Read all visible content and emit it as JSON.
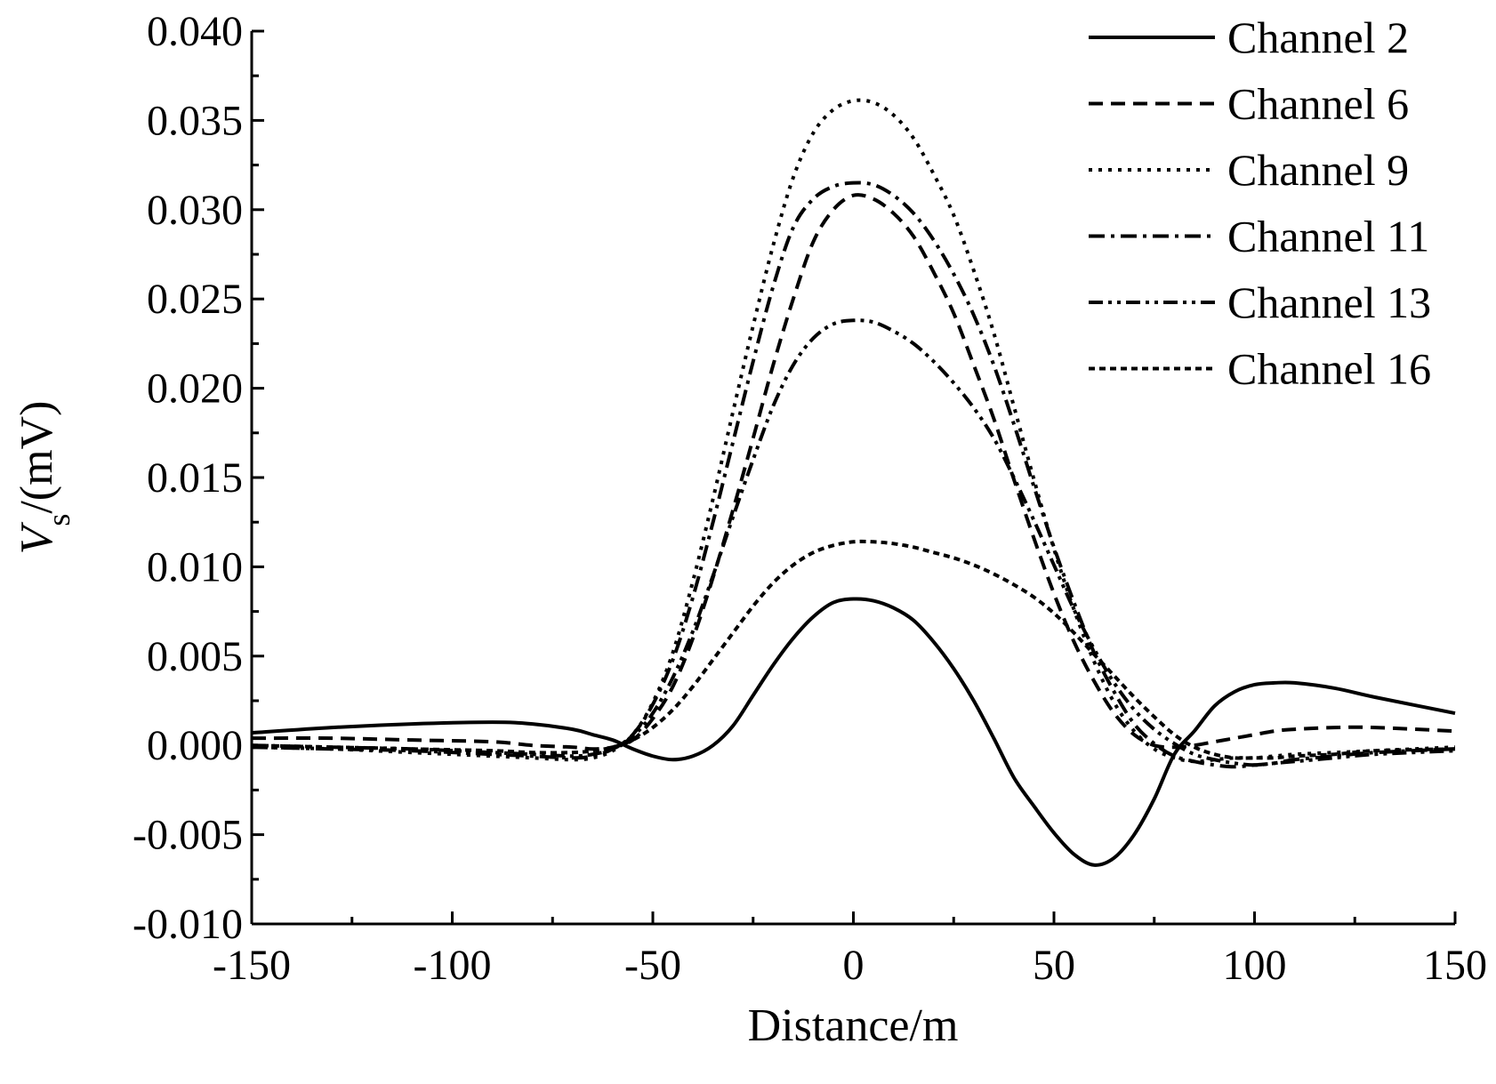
{
  "chart_data": {
    "type": "line",
    "title": "",
    "xlabel": "Distance/m",
    "ylabel_main": "V",
    "ylabel_sub": "s",
    "ylabel_unit": "/(mV)",
    "xlim": [
      -150,
      150
    ],
    "ylim": [
      -0.01,
      0.04
    ],
    "x_ticks": [
      -150,
      -100,
      -50,
      0,
      50,
      100,
      150
    ],
    "x_tick_labels": [
      "-150",
      "-100",
      "-50",
      "0",
      "50",
      "100",
      "150"
    ],
    "y_ticks": [
      -0.01,
      -0.005,
      0.0,
      0.005,
      0.01,
      0.015,
      0.02,
      0.025,
      0.03,
      0.035,
      0.04
    ],
    "y_tick_labels": [
      "-0.010",
      "-0.005",
      "0.000",
      "0.005",
      "0.010",
      "0.015",
      "0.020",
      "0.025",
      "0.030",
      "0.035",
      "0.040"
    ],
    "grid": false,
    "legend_position": "top-right",
    "x": [
      -150,
      -130,
      -110,
      -90,
      -80,
      -70,
      -65,
      -60,
      -55,
      -50,
      -45,
      -40,
      -35,
      -30,
      -25,
      -20,
      -15,
      -10,
      -5,
      0,
      5,
      10,
      15,
      20,
      25,
      30,
      35,
      40,
      45,
      50,
      55,
      60,
      65,
      70,
      75,
      80,
      85,
      90,
      95,
      100,
      105,
      110,
      120,
      130,
      150
    ],
    "series": [
      {
        "name": "Channel 2",
        "dash": "solid",
        "values": [
          0.0007,
          0.001,
          0.0012,
          0.0013,
          0.0012,
          0.0009,
          0.0006,
          0.0003,
          -0.0002,
          -0.0006,
          -0.0008,
          -0.0006,
          0.0,
          0.0011,
          0.0028,
          0.0045,
          0.006,
          0.0072,
          0.008,
          0.0082,
          0.0081,
          0.0077,
          0.007,
          0.0058,
          0.0043,
          0.0025,
          0.0004,
          -0.0018,
          -0.0034,
          -0.0049,
          -0.0061,
          -0.0067,
          -0.0063,
          -0.005,
          -0.003,
          -0.0005,
          0.0008,
          0.0022,
          0.003,
          0.0034,
          0.0035,
          0.0035,
          0.0032,
          0.0027,
          0.0018
        ]
      },
      {
        "name": "Channel 6",
        "dash": "dashed",
        "values": [
          0.0004,
          0.0004,
          0.0003,
          0.0002,
          0.0,
          -0.0001,
          -0.0002,
          -0.0001,
          0.0003,
          0.0015,
          0.0033,
          0.006,
          0.0094,
          0.0132,
          0.0172,
          0.0213,
          0.025,
          0.0282,
          0.03,
          0.0308,
          0.0306,
          0.0298,
          0.0285,
          0.0265,
          0.0242,
          0.0213,
          0.0183,
          0.0149,
          0.0116,
          0.0085,
          0.0058,
          0.0036,
          0.0018,
          0.0006,
          0.0,
          -0.0001,
          0.0,
          0.0002,
          0.0004,
          0.0006,
          0.0008,
          0.0009,
          0.001,
          0.001,
          0.0008
        ]
      },
      {
        "name": "Channel 9",
        "dash": "dotted",
        "values": [
          -0.0001,
          -0.0002,
          -0.0004,
          -0.0006,
          -0.0007,
          -0.0008,
          -0.0007,
          -0.0003,
          0.0006,
          0.0024,
          0.0052,
          0.0092,
          0.0138,
          0.0187,
          0.0235,
          0.028,
          0.0318,
          0.0343,
          0.0356,
          0.0361,
          0.036,
          0.0353,
          0.034,
          0.032,
          0.0297,
          0.0266,
          0.0231,
          0.019,
          0.0149,
          0.011,
          0.0076,
          0.0047,
          0.0024,
          0.0008,
          -0.0002,
          -0.0007,
          -0.0009,
          -0.0008,
          -0.0007,
          -0.0007,
          -0.0006,
          -0.0005,
          -0.0004,
          -0.0003,
          -0.0001
        ]
      },
      {
        "name": "Channel 11",
        "dash": "dashdot",
        "values": [
          -0.0001,
          -0.0002,
          -0.0003,
          -0.0005,
          -0.0006,
          -0.0007,
          -0.0006,
          -0.0002,
          0.0006,
          0.0023,
          0.0048,
          0.0083,
          0.0125,
          0.017,
          0.0215,
          0.0257,
          0.029,
          0.0306,
          0.0313,
          0.0315,
          0.0314,
          0.0308,
          0.0298,
          0.0283,
          0.0264,
          0.0241,
          0.0213,
          0.018,
          0.0145,
          0.0111,
          0.008,
          0.0052,
          0.003,
          0.0012,
          0.0001,
          -0.0006,
          -0.0009,
          -0.0011,
          -0.0012,
          -0.0011,
          -0.001,
          -0.0008,
          -0.0006,
          -0.0004,
          -0.0002
        ]
      },
      {
        "name": "Channel 13",
        "dash": "dashdotdot",
        "values": [
          0.0,
          -0.0001,
          -0.0002,
          -0.0004,
          -0.0005,
          -0.0006,
          -0.0005,
          -0.0002,
          0.0005,
          0.0018,
          0.0038,
          0.0064,
          0.0095,
          0.0128,
          0.016,
          0.019,
          0.0213,
          0.0228,
          0.0236,
          0.0238,
          0.0237,
          0.0232,
          0.0225,
          0.0215,
          0.0203,
          0.0189,
          0.0172,
          0.015,
          0.0126,
          0.0101,
          0.0076,
          0.0054,
          0.0035,
          0.002,
          0.0009,
          0.0001,
          -0.0005,
          -0.0008,
          -0.001,
          -0.0011,
          -0.001,
          -0.0009,
          -0.0007,
          -0.0005,
          -0.0003
        ]
      },
      {
        "name": "Channel 16",
        "dash": "shortdash",
        "values": [
          0.0,
          -0.0001,
          -0.0002,
          -0.0003,
          -0.0004,
          -0.0004,
          -0.0003,
          -0.0001,
          0.0003,
          0.001,
          0.002,
          0.0033,
          0.0048,
          0.0063,
          0.0078,
          0.0091,
          0.0101,
          0.0108,
          0.0112,
          0.0114,
          0.0114,
          0.0113,
          0.0111,
          0.0108,
          0.0105,
          0.0101,
          0.0096,
          0.009,
          0.0083,
          0.0074,
          0.0063,
          0.0051,
          0.0039,
          0.0027,
          0.0016,
          0.0006,
          -0.0001,
          -0.0005,
          -0.0007,
          -0.0007,
          -0.0007,
          -0.0006,
          -0.0005,
          -0.0003,
          -0.0002
        ]
      }
    ]
  }
}
